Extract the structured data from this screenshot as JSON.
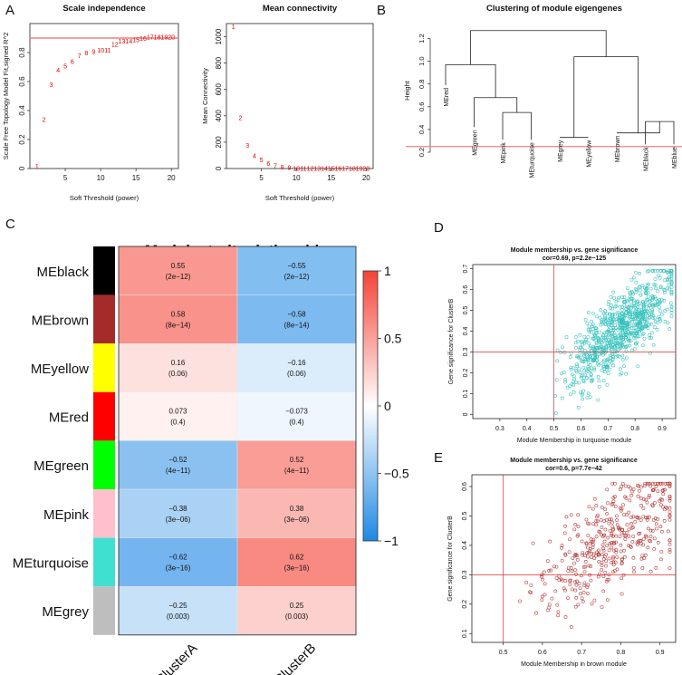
{
  "panels": {
    "A": "A",
    "B": "B",
    "C": "C",
    "D": "D",
    "E": "E"
  },
  "chart_data": [
    {
      "id": "A1",
      "type": "scatter",
      "label_points": true,
      "title": "Scale independence",
      "xlabel": "Soft Threshold (power)",
      "ylabel": "Scale Free Topology Model Fit,signed R^2",
      "xlim": [
        0,
        21
      ],
      "ylim": [
        0,
        1.0
      ],
      "xticks": [
        5,
        10,
        15,
        20
      ],
      "yticks": [
        0.0,
        0.2,
        0.4,
        0.6,
        0.8
      ],
      "hline": 0.9,
      "color": "#e00000",
      "x": [
        1,
        2,
        3,
        4,
        5,
        6,
        7,
        8,
        9,
        10,
        11,
        12,
        13,
        14,
        15,
        16,
        17,
        18,
        19,
        20
      ],
      "y": [
        0.02,
        0.34,
        0.58,
        0.68,
        0.71,
        0.74,
        0.78,
        0.8,
        0.81,
        0.82,
        0.82,
        0.86,
        0.88,
        0.88,
        0.89,
        0.9,
        0.91,
        0.91,
        0.91,
        0.91
      ],
      "labels": [
        "1",
        "2",
        "3",
        "4",
        "5",
        "6",
        "7",
        "8",
        "9",
        "10",
        "11",
        "12",
        "13",
        "14",
        "15",
        "16",
        "17",
        "18",
        "19",
        "20"
      ]
    },
    {
      "id": "A2",
      "type": "scatter",
      "label_points": true,
      "title": "Mean connectivity",
      "xlabel": "Soft Threshold (power)",
      "ylabel": "Mean Connectivity",
      "xlim": [
        0,
        21
      ],
      "ylim": [
        0,
        1100
      ],
      "xticks": [
        5,
        10,
        15,
        20
      ],
      "yticks": [
        0,
        200,
        400,
        600,
        800,
        1000
      ],
      "color": "#e00000",
      "x": [
        1,
        2,
        3,
        4,
        5,
        6,
        7,
        8,
        9,
        10,
        11,
        12,
        13,
        14,
        15,
        16,
        17,
        18,
        19,
        20
      ],
      "y": [
        1080,
        390,
        180,
        100,
        70,
        40,
        25,
        15,
        10,
        5,
        5,
        5,
        5,
        5,
        5,
        5,
        5,
        5,
        5,
        5
      ],
      "labels": [
        "1",
        "2",
        "3",
        "4",
        "5",
        "6",
        "7",
        "8",
        "9",
        "10",
        "11",
        "12",
        "13",
        "14",
        "15",
        "16",
        "17",
        "18",
        "19",
        "20"
      ]
    },
    {
      "id": "B",
      "type": "dendrogram",
      "title": "Clustering of module eigengenes",
      "ylabel": "Height",
      "ylim": [
        0.2,
        1.3
      ],
      "yticks": [
        0.2,
        0.4,
        0.6,
        0.8,
        1.0,
        1.2
      ],
      "cut_line": 0.25,
      "leaves": [
        "MEred",
        "MEgreen",
        "MEpink",
        "MEturquoise",
        "MEgrey",
        "MEyellow",
        "MEbrown",
        "MEblack",
        "MEblue"
      ],
      "leaf_heights": [
        0.79,
        0.42,
        0.31,
        0.31,
        0.33,
        0.33,
        0.37,
        0.27,
        0.27
      ],
      "merges": [
        {
          "a": "L2",
          "b": "L3",
          "h": 0.55
        },
        {
          "a": "L1",
          "b": "M0",
          "h": 0.68
        },
        {
          "a": "L0",
          "b": "M1",
          "h": 0.97
        },
        {
          "a": "L4",
          "b": "L5",
          "h": 0.33
        },
        {
          "a": "L7",
          "b": "L8",
          "h": 0.47
        },
        {
          "a": "L6",
          "b": "M4",
          "h": 0.37
        },
        {
          "a": "M3",
          "b": "M5",
          "h": 1.04
        },
        {
          "a": "M2",
          "b": "M6",
          "h": 1.27
        }
      ]
    },
    {
      "id": "C",
      "type": "heatmap",
      "title": "Module−trait relationships",
      "rows": [
        "MEblack",
        "MEbrown",
        "MEyellow",
        "MEred",
        "MEgreen",
        "MEpink",
        "MEturquoise",
        "MEgrey"
      ],
      "row_colors": [
        "#000000",
        "#a52a2a",
        "#ffff00",
        "#ff0000",
        "#00ff00",
        "#ffc0cb",
        "#40e0d0",
        "#bebebe"
      ],
      "columns": [
        "ClusterA",
        "ClusterB"
      ],
      "values": [
        [
          0.55,
          -0.55
        ],
        [
          0.58,
          -0.58
        ],
        [
          0.16,
          -0.16
        ],
        [
          0.073,
          -0.073
        ],
        [
          -0.52,
          0.52
        ],
        [
          -0.38,
          0.38
        ],
        [
          -0.62,
          0.62
        ],
        [
          -0.25,
          0.25
        ]
      ],
      "value_text": [
        [
          "0.55",
          "−0.55"
        ],
        [
          "0.58",
          "−0.58"
        ],
        [
          "0.16",
          "−0.16"
        ],
        [
          "0.073",
          "−0.073"
        ],
        [
          "−0.52",
          "0.52"
        ],
        [
          "−0.38",
          "0.38"
        ],
        [
          "−0.62",
          "0.62"
        ],
        [
          "−0.25",
          "0.25"
        ]
      ],
      "pvalues": [
        [
          "(2e−12)",
          "(2e−12)"
        ],
        [
          "(8e−14)",
          "(8e−14)"
        ],
        [
          "(0.06)",
          "(0.06)"
        ],
        [
          "(0.4)",
          "(0.4)"
        ],
        [
          "(4e−11)",
          "(4e−11)"
        ],
        [
          "(3e−06)",
          "(3e−06)"
        ],
        [
          "(3e−16)",
          "(3e−16)"
        ],
        [
          "(0.003)",
          "(0.003)"
        ]
      ],
      "scale": [
        -1,
        1
      ],
      "legend_ticks": [
        1,
        0.5,
        0,
        -0.5,
        -1
      ],
      "legend_labels": [
        "1",
        "0.5",
        "0",
        "−0.5",
        "−1"
      ]
    },
    {
      "id": "D",
      "type": "scatter",
      "title": "Module membership vs. gene significance",
      "subtitle": "cor=0.69, p=2.2e−125",
      "xlabel": "Module Membership in turquoise module",
      "ylabel": "Gene significance for  ClusterB",
      "xlim": [
        0.2,
        0.95
      ],
      "ylim": [
        -0.02,
        0.72
      ],
      "xticks": [
        0.3,
        0.4,
        0.5,
        0.6,
        0.7,
        0.8,
        0.9
      ],
      "yticks": [
        0.0,
        0.1,
        0.2,
        0.3,
        0.4,
        0.5,
        0.6,
        0.7
      ],
      "vline": 0.5,
      "hline": 0.3,
      "color": "#30c0bb",
      "n_points": 800,
      "x_center": 0.75,
      "x_spread": 0.1,
      "slope": 1.05,
      "intercept": -0.38,
      "noise": 0.09,
      "seed": 7
    },
    {
      "id": "E",
      "type": "scatter",
      "title": "Module membership vs. gene significance",
      "subtitle": "cor=0.6, p=7.7e−42",
      "xlabel": "Module Membership in brown module",
      "ylabel": "Gene significance for  ClusterB",
      "xlim": [
        0.42,
        0.94
      ],
      "ylim": [
        0.07,
        0.64
      ],
      "xticks": [
        0.5,
        0.6,
        0.7,
        0.8,
        0.9
      ],
      "yticks": [
        0.1,
        0.2,
        0.3,
        0.4,
        0.5,
        0.6
      ],
      "vline": 0.5,
      "hline": 0.3,
      "color": "#b03030",
      "n_points": 420,
      "x_center": 0.77,
      "x_spread": 0.09,
      "slope": 0.95,
      "intercept": -0.31,
      "noise": 0.085,
      "seed": 13
    }
  ]
}
